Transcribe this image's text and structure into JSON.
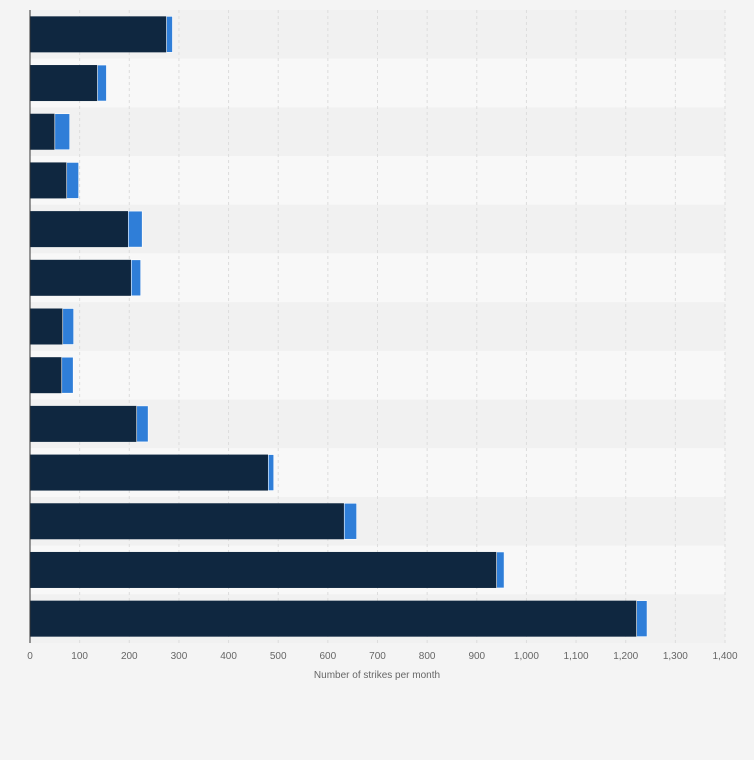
{
  "chart_data": {
    "type": "bar",
    "orientation": "horizontal",
    "stacked": true,
    "categories": [
      "",
      "",
      "",
      "",
      "",
      "",
      "",
      "",
      "",
      "",
      "",
      "",
      ""
    ],
    "series": [
      {
        "values": [
          275,
          136,
          50,
          74,
          198,
          204,
          66,
          64,
          215,
          480,
          633,
          940,
          1222
        ],
        "color": "#0f2740"
      },
      {
        "values": [
          12,
          18,
          30,
          24,
          28,
          19,
          22,
          23,
          23,
          11,
          25,
          15,
          21
        ],
        "color": "#2f7ed8"
      }
    ],
    "xlabel": "Number of strikes per month",
    "ylabel": "",
    "xlim": [
      0,
      1400
    ],
    "xticks": [
      0,
      100,
      200,
      300,
      400,
      500,
      600,
      700,
      800,
      900,
      1000,
      1100,
      1200,
      1300,
      1400
    ],
    "xtick_labels": [
      "0",
      "100",
      "200",
      "300",
      "400",
      "500",
      "600",
      "700",
      "800",
      "900",
      "1,000",
      "1,100",
      "1,200",
      "1,300",
      "1,400"
    ],
    "grid": true,
    "legend": "none",
    "colors": {
      "background": "#f4f4f4",
      "band_dark": "#f1f1f1",
      "band_light": "#f8f8f8",
      "grid": "#dddddd",
      "axis": "#333333"
    }
  }
}
